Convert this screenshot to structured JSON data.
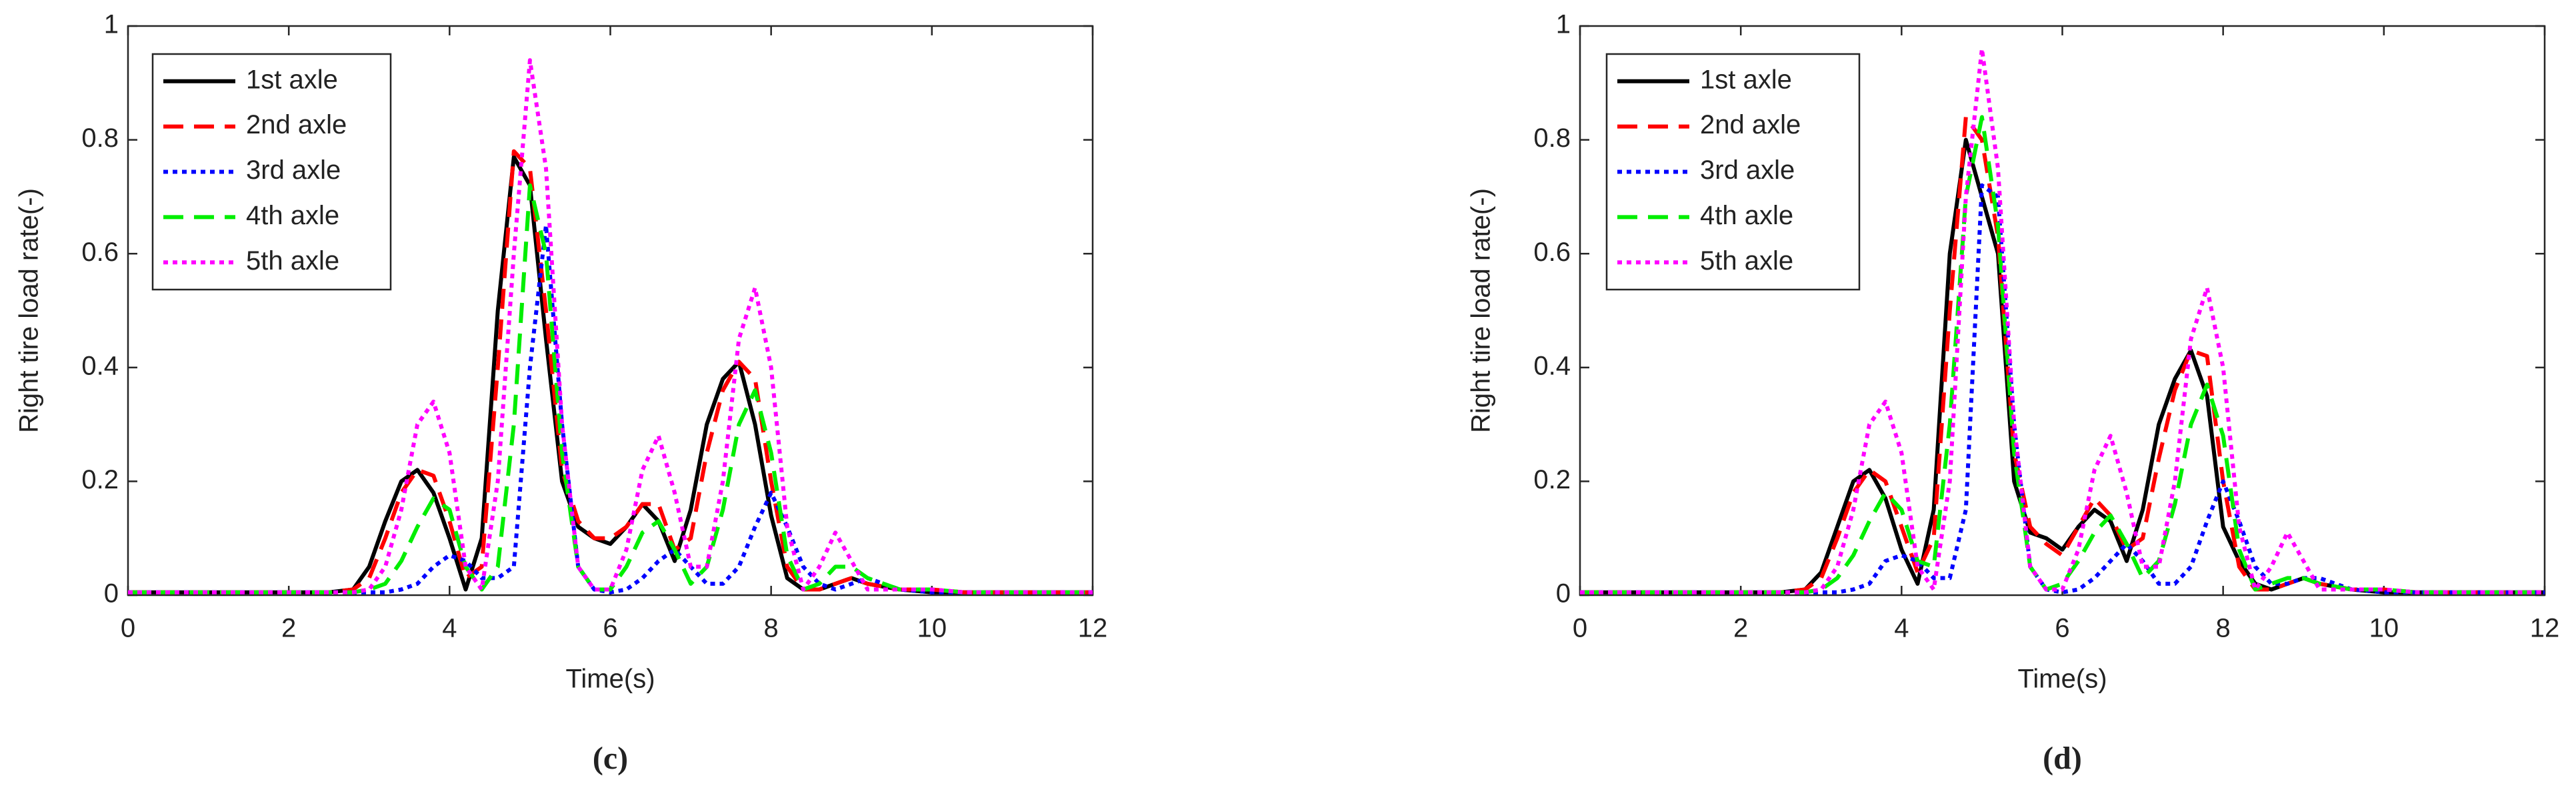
{
  "chart_data": [
    {
      "type": "line",
      "caption": "(c)",
      "xlabel": "Time(s)",
      "ylabel": "Right tire load rate(-)",
      "xlim": [
        0,
        12
      ],
      "ylim": [
        0,
        1
      ],
      "xticks": [
        0,
        2,
        4,
        6,
        8,
        10,
        12
      ],
      "yticks": [
        0,
        0.2,
        0.4,
        0.6,
        0.8,
        1
      ],
      "legend": "upper left",
      "x": [
        0,
        2.5,
        2.8,
        3,
        3.2,
        3.4,
        3.6,
        3.8,
        4,
        4.2,
        4.4,
        4.6,
        4.8,
        5,
        5.2,
        5.4,
        5.6,
        5.8,
        6,
        6.2,
        6.4,
        6.6,
        6.8,
        7,
        7.2,
        7.4,
        7.6,
        7.8,
        8,
        8.2,
        8.4,
        8.6,
        8.8,
        9,
        9.2,
        9.6,
        10,
        10.4,
        12
      ],
      "series": [
        {
          "name": "1st axle",
          "color": "#000000",
          "dash": "solid",
          "values": [
            0.005,
            0.005,
            0.01,
            0.05,
            0.13,
            0.2,
            0.22,
            0.18,
            0.1,
            0.01,
            0.1,
            0.5,
            0.77,
            0.72,
            0.45,
            0.2,
            0.12,
            0.1,
            0.09,
            0.12,
            0.16,
            0.13,
            0.06,
            0.15,
            0.3,
            0.38,
            0.41,
            0.3,
            0.14,
            0.03,
            0.01,
            0.01,
            0.02,
            0.03,
            0.02,
            0.01,
            0.005,
            0.005,
            0.005
          ]
        },
        {
          "name": "2nd axle",
          "color": "#ff0000",
          "dash": "dashed",
          "values": [
            0.005,
            0.005,
            0.01,
            0.03,
            0.1,
            0.18,
            0.22,
            0.21,
            0.13,
            0.03,
            0.05,
            0.4,
            0.78,
            0.75,
            0.5,
            0.22,
            0.13,
            0.1,
            0.1,
            0.12,
            0.16,
            0.16,
            0.08,
            0.1,
            0.25,
            0.36,
            0.41,
            0.38,
            0.2,
            0.05,
            0.01,
            0.01,
            0.02,
            0.03,
            0.02,
            0.01,
            0.01,
            0.005,
            0.005
          ]
        },
        {
          "name": "3rd axle",
          "color": "#0000ff",
          "dash": "dotted",
          "values": [
            0.005,
            0.005,
            0.005,
            0.005,
            0.005,
            0.01,
            0.02,
            0.05,
            0.07,
            0.06,
            0.03,
            0.03,
            0.05,
            0.4,
            0.65,
            0.3,
            0.05,
            0.01,
            0.005,
            0.01,
            0.03,
            0.06,
            0.08,
            0.05,
            0.02,
            0.02,
            0.05,
            0.12,
            0.18,
            0.12,
            0.05,
            0.02,
            0.01,
            0.02,
            0.03,
            0.01,
            0.005,
            0.005,
            0.005
          ]
        },
        {
          "name": "4th axle",
          "color": "#00ee00",
          "dash": "dashed",
          "values": [
            0.005,
            0.005,
            0.005,
            0.01,
            0.02,
            0.06,
            0.12,
            0.17,
            0.15,
            0.05,
            0.01,
            0.05,
            0.3,
            0.72,
            0.6,
            0.25,
            0.05,
            0.01,
            0.01,
            0.05,
            0.11,
            0.13,
            0.08,
            0.02,
            0.05,
            0.15,
            0.3,
            0.36,
            0.25,
            0.07,
            0.01,
            0.02,
            0.05,
            0.05,
            0.03,
            0.01,
            0.01,
            0.005,
            0.005
          ]
        },
        {
          "name": "5th axle",
          "color": "#ff00ff",
          "dash": "dotted",
          "values": [
            0.005,
            0.005,
            0.005,
            0.01,
            0.05,
            0.15,
            0.3,
            0.34,
            0.25,
            0.05,
            0.01,
            0.2,
            0.6,
            0.94,
            0.75,
            0.3,
            0.05,
            0.01,
            0.01,
            0.08,
            0.22,
            0.28,
            0.18,
            0.05,
            0.05,
            0.2,
            0.45,
            0.54,
            0.4,
            0.12,
            0.01,
            0.05,
            0.11,
            0.06,
            0.01,
            0.01,
            0.01,
            0.005,
            0.005
          ]
        }
      ]
    },
    {
      "type": "line",
      "caption": "(d)",
      "xlabel": "Time(s)",
      "ylabel": "Right tire load rate(-)",
      "xlim": [
        0,
        12
      ],
      "ylim": [
        0,
        1
      ],
      "xticks": [
        0,
        2,
        4,
        6,
        8,
        10,
        12
      ],
      "yticks": [
        0,
        0.2,
        0.4,
        0.6,
        0.8,
        1
      ],
      "legend": "upper left",
      "x": [
        0,
        2.5,
        2.8,
        3,
        3.2,
        3.4,
        3.6,
        3.8,
        4,
        4.2,
        4.4,
        4.6,
        4.8,
        5,
        5.2,
        5.4,
        5.6,
        5.8,
        6,
        6.2,
        6.4,
        6.6,
        6.8,
        7,
        7.2,
        7.4,
        7.6,
        7.8,
        8,
        8.2,
        8.4,
        8.6,
        8.8,
        9,
        9.2,
        9.6,
        10,
        10.4,
        12
      ],
      "series": [
        {
          "name": "1st axle",
          "color": "#000000",
          "dash": "solid",
          "values": [
            0.005,
            0.005,
            0.01,
            0.04,
            0.12,
            0.2,
            0.22,
            0.17,
            0.08,
            0.02,
            0.15,
            0.6,
            0.8,
            0.7,
            0.6,
            0.2,
            0.11,
            0.1,
            0.08,
            0.12,
            0.15,
            0.13,
            0.06,
            0.15,
            0.3,
            0.38,
            0.43,
            0.35,
            0.12,
            0.06,
            0.02,
            0.01,
            0.02,
            0.03,
            0.02,
            0.01,
            0.005,
            0.005,
            0.005
          ]
        },
        {
          "name": "2nd axle",
          "color": "#ff0000",
          "dash": "dashed",
          "values": [
            0.005,
            0.005,
            0.01,
            0.03,
            0.1,
            0.18,
            0.22,
            0.2,
            0.12,
            0.04,
            0.1,
            0.5,
            0.84,
            0.8,
            0.63,
            0.25,
            0.12,
            0.09,
            0.07,
            0.12,
            0.17,
            0.14,
            0.08,
            0.1,
            0.24,
            0.36,
            0.43,
            0.42,
            0.2,
            0.05,
            0.01,
            0.01,
            0.02,
            0.03,
            0.02,
            0.01,
            0.01,
            0.005,
            0.005
          ]
        },
        {
          "name": "3rd axle",
          "color": "#0000ff",
          "dash": "dotted",
          "values": [
            0.005,
            0.005,
            0.005,
            0.005,
            0.005,
            0.01,
            0.02,
            0.06,
            0.07,
            0.06,
            0.03,
            0.03,
            0.15,
            0.72,
            0.7,
            0.3,
            0.05,
            0.01,
            0.005,
            0.01,
            0.03,
            0.06,
            0.09,
            0.06,
            0.02,
            0.02,
            0.05,
            0.13,
            0.2,
            0.13,
            0.05,
            0.02,
            0.02,
            0.03,
            0.03,
            0.01,
            0.005,
            0.005,
            0.005
          ]
        },
        {
          "name": "4th axle",
          "color": "#00ee00",
          "dash": "dashed",
          "values": [
            0.005,
            0.005,
            0.005,
            0.01,
            0.03,
            0.07,
            0.13,
            0.18,
            0.15,
            0.06,
            0.05,
            0.3,
            0.7,
            0.84,
            0.65,
            0.25,
            0.05,
            0.01,
            0.02,
            0.06,
            0.11,
            0.14,
            0.09,
            0.03,
            0.06,
            0.16,
            0.3,
            0.37,
            0.28,
            0.08,
            0.01,
            0.02,
            0.03,
            0.03,
            0.02,
            0.01,
            0.01,
            0.005,
            0.005
          ]
        },
        {
          "name": "5th axle",
          "color": "#ff00ff",
          "dash": "dotted",
          "values": [
            0.005,
            0.005,
            0.005,
            0.01,
            0.05,
            0.15,
            0.3,
            0.34,
            0.25,
            0.05,
            0.01,
            0.2,
            0.7,
            0.96,
            0.75,
            0.3,
            0.05,
            0.01,
            0.01,
            0.08,
            0.22,
            0.28,
            0.18,
            0.05,
            0.05,
            0.2,
            0.45,
            0.54,
            0.4,
            0.12,
            0.01,
            0.05,
            0.11,
            0.06,
            0.01,
            0.01,
            0.01,
            0.005,
            0.005
          ]
        }
      ]
    }
  ]
}
